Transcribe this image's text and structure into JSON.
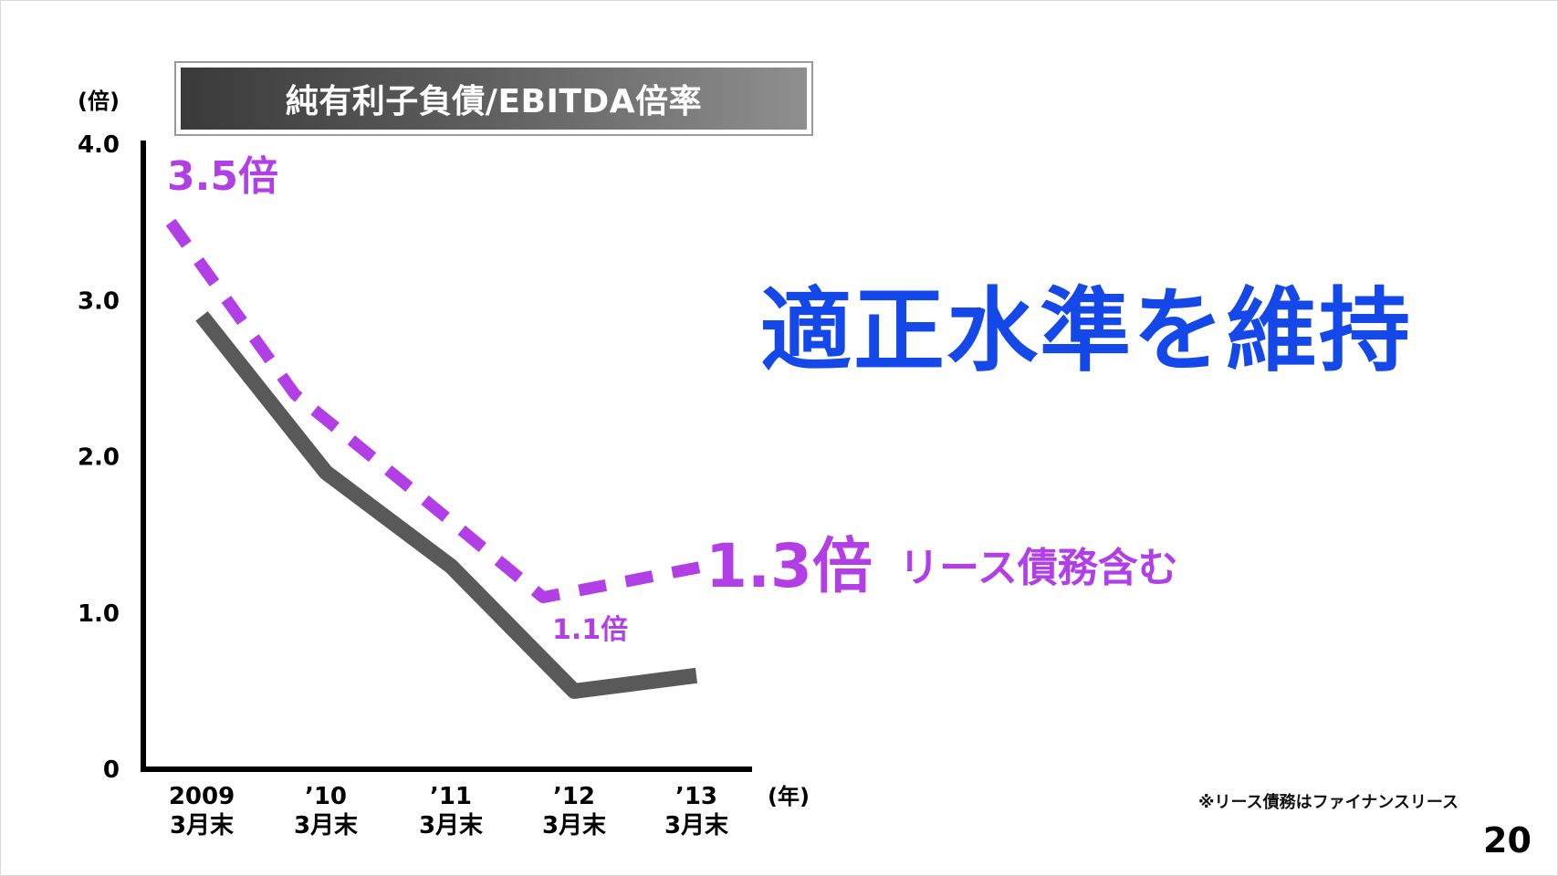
{
  "slide": {
    "title": "純有利子負債/EBITDA倍率",
    "headline": "適正水準を維持",
    "footnote": "※リース債務はファイナンスリース",
    "page_number": "20"
  },
  "chart_data": {
    "type": "line",
    "title": "純有利子負債/EBITDA倍率",
    "y_unit": "(倍)",
    "x_unit": "(年)",
    "ylim": [
      0,
      4.0
    ],
    "y_ticks": [
      "0",
      "1.0",
      "2.0",
      "3.0",
      "4.0"
    ],
    "y_tick_values": [
      0,
      1,
      2,
      3,
      4
    ],
    "categories": [
      {
        "top": "2009",
        "bottom": "3月末"
      },
      {
        "top": "’10",
        "bottom": "3月末"
      },
      {
        "top": "’11",
        "bottom": "3月末"
      },
      {
        "top": "’12",
        "bottom": "3月末"
      },
      {
        "top": "’13",
        "bottom": "3月末"
      }
    ],
    "grid": false,
    "series": [
      {
        "style": "solid",
        "color": "#595959",
        "values": [
          2.9,
          1.9,
          1.3,
          0.5,
          0.6
        ]
      },
      {
        "style": "dashed",
        "color": "#b23fe6",
        "values": [
          3.5,
          2.4,
          1.75,
          1.1,
          1.3
        ]
      }
    ],
    "annotations": {
      "start": "3.5倍",
      "low": "1.1倍",
      "end": "1.3倍",
      "end_note": "リース債務含む"
    }
  }
}
